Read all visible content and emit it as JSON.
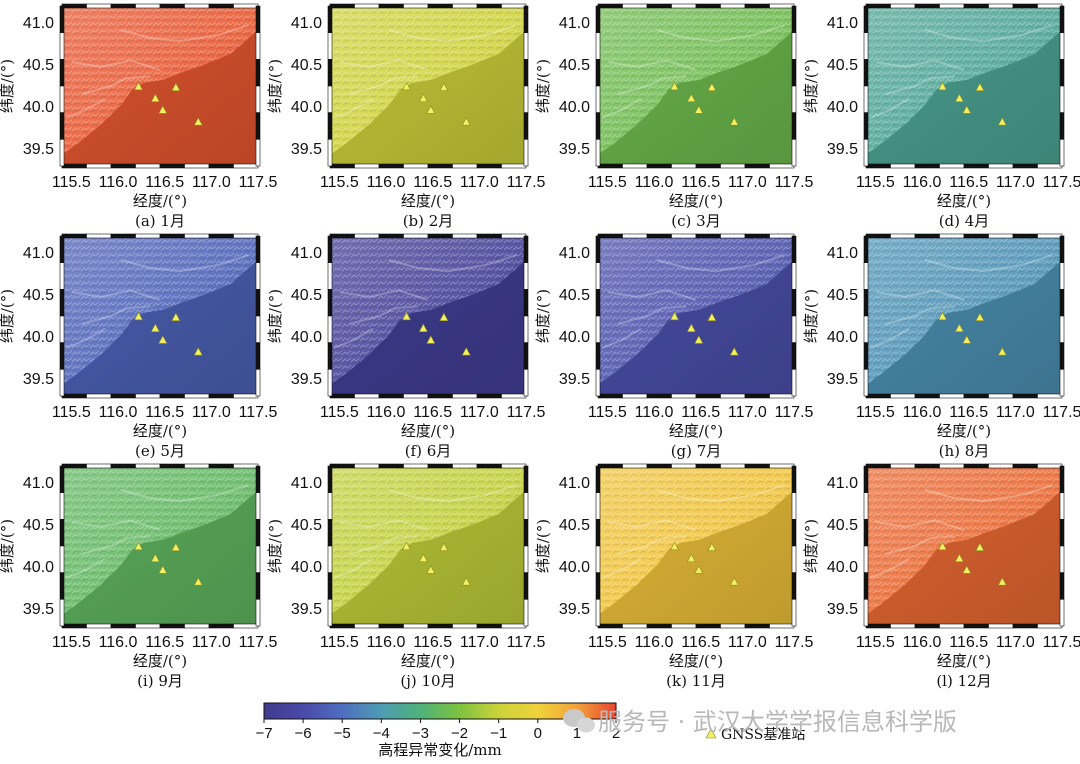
{
  "chart_data": [
    {
      "type": "heatmap",
      "caption": "(a) 1月",
      "value_mm": 1.8
    },
    {
      "type": "heatmap",
      "caption": "(b) 2月",
      "value_mm": -0.9
    },
    {
      "type": "heatmap",
      "caption": "(c) 3月",
      "value_mm": -2.3
    },
    {
      "type": "heatmap",
      "caption": "(d) 4月",
      "value_mm": -3.5
    },
    {
      "type": "heatmap",
      "caption": "(e) 5月",
      "value_mm": -5.3
    },
    {
      "type": "heatmap",
      "caption": "(f) 6月",
      "value_mm": -6.6
    },
    {
      "type": "heatmap",
      "caption": "(g) 7月",
      "value_mm": -5.8
    },
    {
      "type": "heatmap",
      "caption": "(h) 8月",
      "value_mm": -4.2
    },
    {
      "type": "heatmap",
      "caption": "(i) 9月",
      "value_mm": -2.6
    },
    {
      "type": "heatmap",
      "caption": "(j) 10月",
      "value_mm": -1.1
    },
    {
      "type": "heatmap",
      "caption": "(k) 11月",
      "value_mm": 0.3
    },
    {
      "type": "heatmap",
      "caption": "(l) 12月",
      "value_mm": 1.6
    }
  ],
  "axes": {
    "xlabel": "经度/(°)",
    "ylabel": "纬度/(°)",
    "xticks": [
      "115.5",
      "116.0",
      "116.5",
      "117.0",
      "117.5"
    ],
    "xtick_values": [
      115.5,
      116.0,
      116.5,
      117.0,
      117.5
    ],
    "yticks": [
      "41.0",
      "40.5",
      "40.0",
      "39.5"
    ],
    "ytick_values": [
      41.0,
      40.5,
      40.0,
      39.5
    ],
    "xlim": [
      115.4,
      117.5
    ],
    "ylim": [
      39.3,
      41.2
    ]
  },
  "stations": [
    {
      "lon": 116.22,
      "lat": 40.24
    },
    {
      "lon": 116.4,
      "lat": 40.1
    },
    {
      "lon": 116.48,
      "lat": 39.96
    },
    {
      "lon": 116.62,
      "lat": 40.23
    },
    {
      "lon": 116.86,
      "lat": 39.82
    }
  ],
  "colorbar": {
    "title": "高程异常变化/mm",
    "ticks": [
      "−7",
      "−6",
      "−5",
      "−4",
      "−3",
      "−2",
      "−1",
      "0",
      "1",
      "2"
    ],
    "tick_values": [
      -7,
      -6,
      -5,
      -4,
      -3,
      -2,
      -1,
      0,
      1,
      2
    ],
    "range": [
      -7,
      2
    ],
    "stops": [
      "#3f3a8e",
      "#4a4aa8",
      "#4f6ec0",
      "#4d9cb4",
      "#4fb27a",
      "#7ec23e",
      "#cbd33a",
      "#f0d23a",
      "#f3a23a",
      "#e8452f"
    ]
  },
  "legend": {
    "marker": "triangle",
    "marker_color": "#f2ef62",
    "label": "GNSS基准站"
  },
  "watermark": {
    "text": "服务号 · 武汉大学学报信息科学版"
  }
}
